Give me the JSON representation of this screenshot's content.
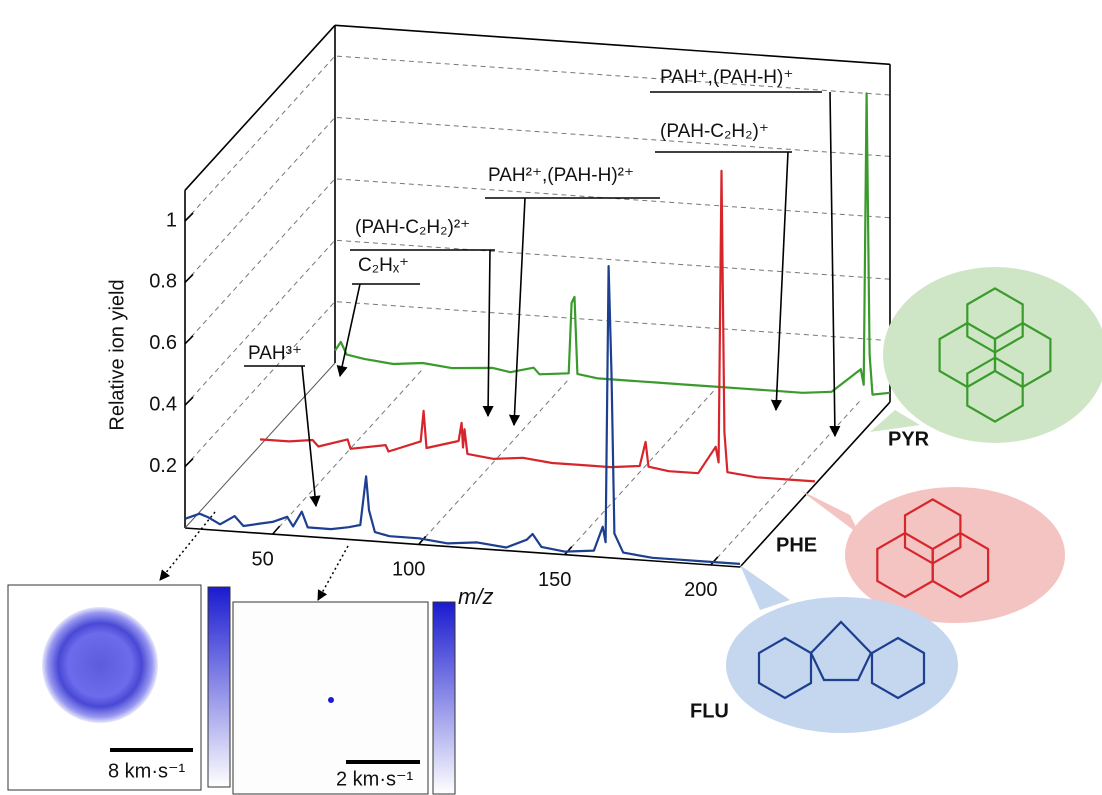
{
  "chart_data": {
    "type": "line3d",
    "y_label": "Relative ion yield",
    "x_label": "m/z",
    "xlim": [
      20,
      210
    ],
    "ylim": [
      0,
      1.1
    ],
    "xticks": [
      50,
      100,
      150,
      200
    ],
    "yticks": [
      0.2,
      0.4,
      0.6,
      0.8,
      1.0
    ],
    "grid": true,
    "series": [
      {
        "name": "FLU",
        "color": "#1d3f8f",
        "x": [
          20,
          25,
          28,
          32,
          37,
          40,
          45,
          50,
          55,
          57,
          60,
          62,
          70,
          76,
          80,
          82,
          83,
          85,
          90,
          100,
          110,
          120,
          130,
          137,
          139,
          142,
          150,
          160,
          163,
          164,
          165,
          166,
          167,
          170,
          180,
          190,
          200,
          210
        ],
        "values": [
          0.03,
          0.05,
          0.04,
          0.02,
          0.05,
          0.02,
          0.03,
          0.04,
          0.06,
          0.03,
          0.08,
          0.03,
          0.03,
          0.04,
          0.05,
          0.21,
          0.1,
          0.03,
          0.02,
          0.02,
          0.01,
          0.02,
          0.01,
          0.04,
          0.06,
          0.02,
          0.01,
          0.02,
          0.1,
          0.05,
          0.95,
          0.6,
          0.08,
          0.02,
          0.01,
          0.01,
          0.01,
          0.01
        ]
      },
      {
        "name": "PHE",
        "color": "#d7262b",
        "x": [
          20,
          30,
          38,
          40,
          50,
          51,
          63,
          64,
          75,
          76,
          77,
          88,
          89,
          89.5,
          90,
          91,
          100,
          110,
          120,
          130,
          140,
          150,
          152,
          153,
          160,
          170,
          176,
          177,
          178,
          179,
          180,
          190,
          200,
          210
        ],
        "values": [
          0.02,
          0.02,
          0.03,
          0.01,
          0.04,
          0.01,
          0.03,
          0.01,
          0.05,
          0.15,
          0.03,
          0.06,
          0.12,
          0.04,
          0.1,
          0.02,
          0.01,
          0.02,
          0.01,
          0.01,
          0.01,
          0.02,
          0.1,
          0.02,
          0.01,
          0.01,
          0.1,
          0.05,
          1.0,
          0.15,
          0.02,
          0.01,
          0.01,
          0.01
        ]
      },
      {
        "name": "PYR",
        "color": "#3a9b2c",
        "x": [
          20,
          22,
          24,
          30,
          40,
          50,
          60,
          74,
          80,
          88,
          90,
          100,
          101,
          102,
          103,
          110,
          120,
          130,
          140,
          150,
          160,
          170,
          180,
          190,
          200,
          201,
          202,
          203,
          204,
          210
        ],
        "values": [
          0.04,
          0.07,
          0.03,
          0.02,
          0.01,
          0.02,
          0.01,
          0.02,
          0.01,
          0.03,
          0.01,
          0.02,
          0.25,
          0.27,
          0.02,
          0.01,
          0.01,
          0.01,
          0.01,
          0.01,
          0.01,
          0.01,
          0.01,
          0.02,
          0.1,
          0.05,
          1.0,
          0.15,
          0.02,
          0.03
        ]
      }
    ],
    "annotations": [
      "PAH⁺,(PAH-H)⁺",
      "(PAH-C₂H₂)⁺",
      "PAH²⁺,(PAH-H)²⁺",
      "(PAH-C₂H₂)²⁺",
      "C₂Hₓ⁺",
      "PAH³⁺"
    ],
    "insets": [
      {
        "scale_label": "8 km·s⁻¹"
      },
      {
        "scale_label": "2 km·s⁻¹"
      }
    ]
  }
}
